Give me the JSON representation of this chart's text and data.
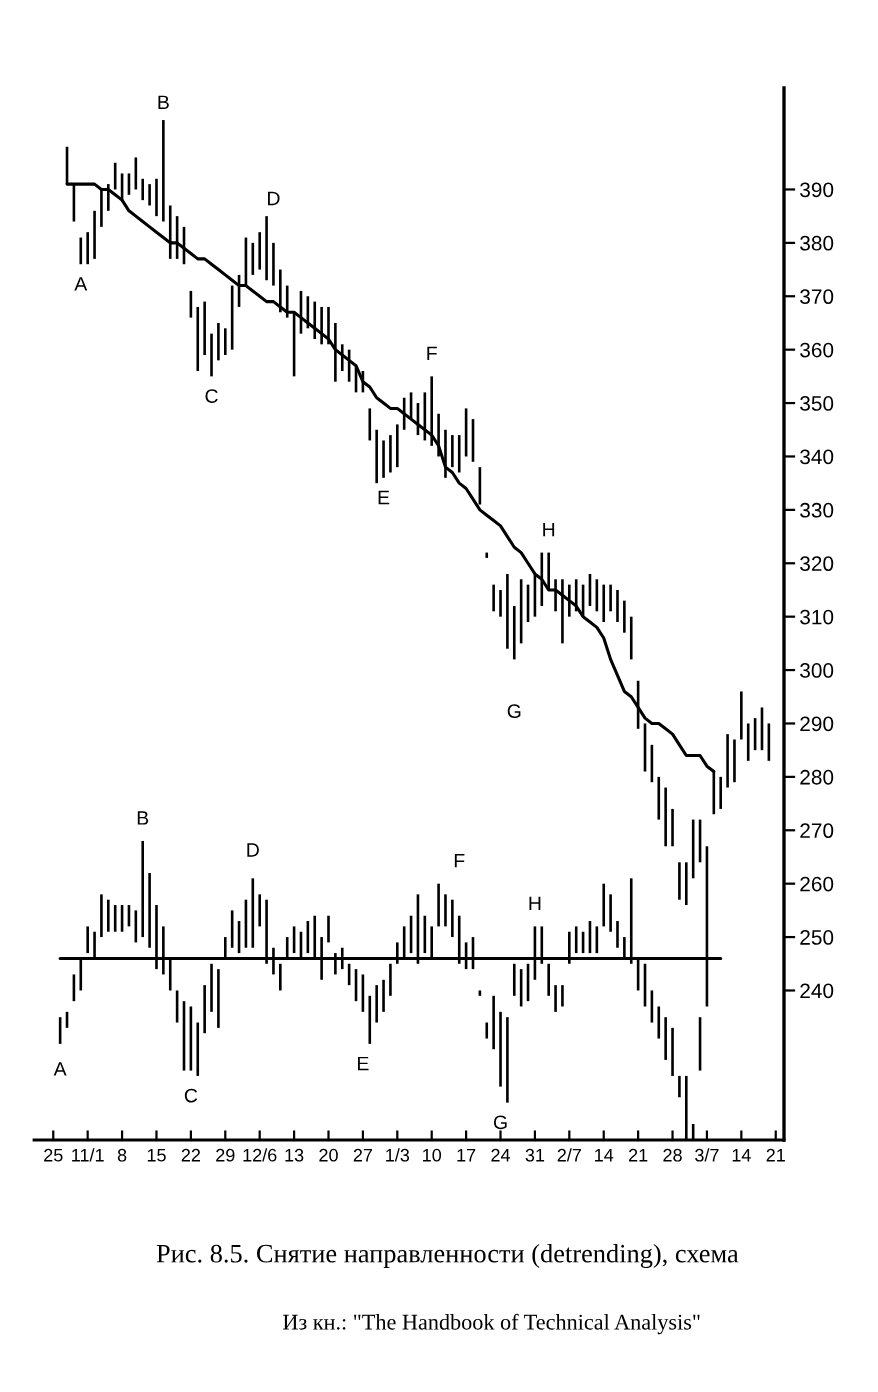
{
  "chart_data": {
    "type": "bar",
    "title": "Рис. 8.5. Снятие направленности (detrending), схема",
    "annotations": [
      "A",
      "B",
      "C",
      "D",
      "E",
      "F",
      "G",
      "H",
      "A",
      "B",
      "C",
      "D",
      "E",
      "F",
      "G",
      "H",
      "Из кн.: \"The Handbook of Technical Analysis\""
    ],
    "categories": [
      "25",
      null,
      null,
      null,
      null,
      "11/1",
      null,
      null,
      null,
      null,
      "8",
      null,
      null,
      null,
      null,
      "15",
      null,
      null,
      null,
      null,
      "22",
      null,
      null,
      null,
      null,
      "29",
      null,
      null,
      null,
      null,
      "12/6",
      null,
      null,
      null,
      null,
      "13",
      null,
      null,
      null,
      null,
      "20",
      null,
      null,
      null,
      null,
      "27",
      null,
      null,
      null,
      null,
      "1/3",
      null,
      null,
      null,
      null,
      "10",
      null,
      null,
      null,
      null,
      "17",
      null,
      null,
      null,
      null,
      "24",
      null,
      null,
      null,
      null,
      "31",
      null,
      null,
      null,
      null,
      "2/7",
      null,
      null,
      null,
      null,
      "14",
      null,
      null,
      null,
      null,
      "21",
      null,
      null,
      null,
      null,
      "28",
      null,
      null,
      null,
      null,
      "3/7",
      null,
      null,
      null,
      null,
      "14",
      null,
      null,
      null,
      null,
      "21"
    ],
    "ylim": [
      212,
      409
    ],
    "yticks": [
      240,
      250,
      260,
      270,
      280,
      290,
      300,
      310,
      320,
      330,
      340,
      350,
      360,
      370,
      380,
      390
    ],
    "series": [
      {
        "color": "#000000",
        "base": [
          null,
          null,
          391,
          384,
          376,
          376,
          377,
          383,
          386,
          390,
          388,
          389,
          390,
          388,
          387,
          385,
          384,
          377,
          377,
          376,
          366,
          356,
          359,
          355,
          358,
          359,
          360,
          368,
          372,
          374,
          375,
          373,
          372,
          367,
          366,
          355,
          363,
          364,
          362,
          361,
          361,
          354,
          356,
          354,
          352,
          352,
          343,
          335,
          336,
          337,
          338,
          345,
          347,
          344,
          343,
          342,
          340,
          336,
          338,
          337,
          340,
          339,
          331,
          321,
          311,
          310,
          304,
          302,
          305,
          309,
          310,
          312,
          315,
          311,
          305,
          310,
          311,
          310,
          312,
          311,
          309,
          311,
          309,
          307,
          302,
          289,
          281,
          279,
          272,
          267,
          267,
          257,
          256,
          261,
          264,
          247,
          273,
          274,
          278,
          279,
          287,
          283,
          285,
          285,
          283,
          null
        ],
        "values": [
          null,
          null,
          7,
          7,
          5,
          6,
          9,
          7,
          5,
          5,
          5,
          4,
          6,
          4,
          4,
          7,
          19,
          10,
          8,
          7,
          5,
          12,
          10,
          8,
          7,
          5,
          12,
          6,
          9,
          6,
          7,
          12,
          8,
          8,
          6,
          12,
          8,
          6,
          7,
          7,
          7,
          11,
          5,
          6,
          5,
          4,
          6,
          10,
          7,
          7,
          8,
          6,
          5,
          6,
          9,
          13,
          8,
          9,
          6,
          7,
          9,
          8,
          7,
          1,
          5,
          5,
          14,
          10,
          12,
          7,
          8,
          10,
          7,
          6,
          12,
          6,
          6,
          6,
          6,
          6,
          7,
          5,
          6,
          6,
          8,
          9,
          9,
          7,
          8,
          11,
          7,
          7,
          8,
          11,
          8,
          20,
          8,
          6,
          10,
          8,
          9,
          7,
          6,
          8,
          7,
          null
        ]
      },
      {
        "type": "line",
        "color": "#000000",
        "values": [
          null,
          null,
          391,
          391,
          391,
          391,
          391,
          390,
          390,
          389,
          388,
          386,
          385,
          384,
          383,
          382,
          381,
          380,
          380,
          379,
          378,
          377,
          377,
          376,
          375,
          374,
          373,
          372,
          372,
          371,
          370,
          369,
          369,
          368,
          367,
          367,
          366,
          365,
          364,
          363,
          362,
          360,
          359,
          358,
          357,
          354,
          353,
          351,
          350,
          349,
          349,
          348,
          347,
          346,
          345,
          344,
          342,
          338,
          337,
          335,
          334,
          332,
          330,
          329,
          328,
          327,
          325,
          323,
          322,
          320,
          318,
          317,
          315,
          315,
          314,
          313,
          312,
          310,
          309,
          308,
          306,
          302,
          299,
          296,
          295,
          293,
          291,
          290,
          290,
          289,
          288,
          286,
          284,
          284,
          284,
          282,
          281,
          null,
          null,
          null,
          null,
          null,
          null,
          null,
          null,
          null
        ]
      },
      {
        "color": "#000000",
        "base": [
          null,
          230,
          233,
          238,
          240,
          247,
          246,
          250,
          251,
          251,
          251,
          252,
          249,
          250,
          248,
          244,
          243,
          240,
          234,
          225,
          225,
          224,
          232,
          236,
          233,
          246,
          248,
          247,
          248,
          248,
          252,
          245,
          243,
          240,
          246,
          247,
          246,
          247,
          246,
          242,
          249,
          243,
          244,
          241,
          238,
          236,
          230,
          234,
          236,
          239,
          245,
          246,
          247,
          245,
          247,
          246,
          252,
          252,
          250,
          245,
          244,
          244,
          239,
          231,
          229,
          222,
          219,
          239,
          237,
          238,
          242,
          245,
          239,
          236,
          237,
          245,
          247,
          247,
          247,
          247,
          252,
          251,
          248,
          246,
          245,
          240,
          237,
          234,
          231,
          227,
          224,
          220,
          212,
          212,
          225,
          237,
          null,
          null,
          null,
          null,
          null,
          null,
          null,
          null,
          null,
          null
        ],
        "values": [
          null,
          5,
          3,
          5,
          6,
          5,
          5,
          8,
          6,
          5,
          5,
          4,
          6,
          18,
          14,
          12,
          9,
          6,
          6,
          13,
          12,
          10,
          9,
          9,
          11,
          4,
          7,
          6,
          9,
          13,
          6,
          12,
          5,
          5,
          4,
          5,
          5,
          6,
          8,
          8,
          5,
          4,
          4,
          4,
          6,
          7,
          9,
          7,
          6,
          6,
          4,
          6,
          7,
          13,
          7,
          6,
          8,
          6,
          7,
          9,
          5,
          6,
          1,
          3,
          10,
          14,
          16,
          6,
          7,
          7,
          10,
          7,
          6,
          5,
          4,
          6,
          5,
          4,
          6,
          5,
          8,
          7,
          5,
          4,
          16,
          6,
          8,
          6,
          6,
          8,
          9,
          4,
          12,
          3,
          10,
          10,
          null,
          null,
          null,
          null,
          null,
          null,
          null,
          null,
          null,
          null
        ]
      },
      {
        "type": "line",
        "color": "#000000",
        "values": [
          null,
          246,
          246,
          246,
          246,
          246,
          246,
          246,
          246,
          246,
          246,
          246,
          246,
          246,
          246,
          246,
          246,
          246,
          246,
          246,
          246,
          246,
          246,
          246,
          246,
          246,
          246,
          246,
          246,
          246,
          246,
          246,
          246,
          246,
          246,
          246,
          246,
          246,
          246,
          246,
          246,
          246,
          246,
          246,
          246,
          246,
          246,
          246,
          246,
          246,
          246,
          246,
          246,
          246,
          246,
          246,
          246,
          246,
          246,
          246,
          246,
          246,
          246,
          246,
          246,
          246,
          246,
          246,
          246,
          246,
          246,
          246,
          246,
          246,
          246,
          246,
          246,
          246,
          246,
          246,
          246,
          246,
          246,
          246,
          246,
          246,
          246,
          246,
          246,
          246,
          246,
          246,
          246,
          246,
          246,
          246,
          246,
          246,
          null,
          null,
          null,
          null,
          null,
          null,
          null,
          null
        ]
      }
    ]
  }
}
